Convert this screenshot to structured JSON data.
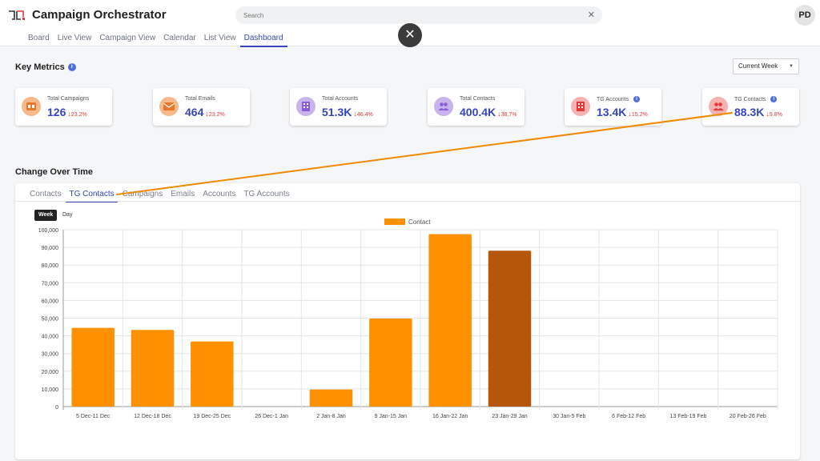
{
  "app": {
    "title": "Campaign Orchestrator",
    "avatar_initials": "PD"
  },
  "search": {
    "placeholder": "Search",
    "clear_icon": "close-icon"
  },
  "nav": {
    "items": [
      "Board",
      "Live View",
      "Campaign View",
      "Calendar",
      "List View",
      "Dashboard"
    ],
    "active": "Dashboard"
  },
  "overlay": {
    "close_label": "✕"
  },
  "key_metrics": {
    "title": "Key Metrics",
    "info": "i",
    "period_select": "Current Week",
    "cards": [
      {
        "label": "Total Campaigns",
        "value": "126",
        "change": "23.2%",
        "icon": "campaign-icon",
        "icon_bg": "#f7b98a",
        "icon_fg": "#e8772e"
      },
      {
        "label": "Total Emails",
        "value": "464",
        "change": "23.2%",
        "icon": "email-icon",
        "icon_bg": "#f7b98a",
        "icon_fg": "#e8772e"
      },
      {
        "label": "Total Accounts",
        "value": "51.3K",
        "change": "46.4%",
        "icon": "building-icon",
        "icon_bg": "#c9b3ec",
        "icon_fg": "#8a5cd6"
      },
      {
        "label": "Total Contacts",
        "value": "400.4K",
        "change": "38.7%",
        "icon": "people-icon",
        "icon_bg": "#c9b3ec",
        "icon_fg": "#8a5cd6"
      },
      {
        "label": "TG Accounts",
        "value": "13.4K",
        "change": "15.2%",
        "icon": "building-icon",
        "icon_bg": "#f7b1b1",
        "icon_fg": "#e53935",
        "info": "i"
      },
      {
        "label": "TG Contacts",
        "value": "88.3K",
        "change": "9.8%",
        "icon": "people-icon",
        "icon_bg": "#f7b1b1",
        "icon_fg": "#e53935",
        "info": "i"
      }
    ]
  },
  "change_over_time": {
    "title": "Change Over Time",
    "tabs": [
      "Contacts",
      "TG Contacts",
      "Campaigns",
      "Emails",
      "Accounts",
      "TG Accounts"
    ],
    "active_tab": "TG Contacts",
    "toggles": {
      "week": "Week",
      "day": "Day",
      "active": "Week"
    }
  },
  "chart_data": {
    "type": "bar",
    "legend": "Contact",
    "legend_position": "top-center",
    "categories": [
      "5 Dec-11 Dec",
      "12 Dec-18 Dec",
      "19 Dec-25 Dec",
      "26 Dec-1 Jan",
      "2 Jan-8 Jan",
      "9 Jan-15 Jan",
      "16 Jan-22 Jan",
      "23 Jan-29 Jan",
      "30 Jan-5 Feb",
      "6 Feb-12 Feb",
      "13 Feb-19 Feb",
      "20 Feb-26 Feb"
    ],
    "values": [
      44500,
      43300,
      36800,
      0,
      9700,
      49800,
      97500,
      88100,
      0,
      0,
      0,
      0
    ],
    "highlight_index": 7,
    "ylim": [
      0,
      100000
    ],
    "yticks": [
      "0",
      "10,000",
      "20,000",
      "30,000",
      "40,000",
      "50,000",
      "60,000",
      "70,000",
      "80,000",
      "90,000",
      "100,000"
    ],
    "grid": true,
    "colors": {
      "bar": "#ff9100",
      "highlight": "#b5560a"
    }
  },
  "annotation": {
    "color": "#f08a00"
  }
}
